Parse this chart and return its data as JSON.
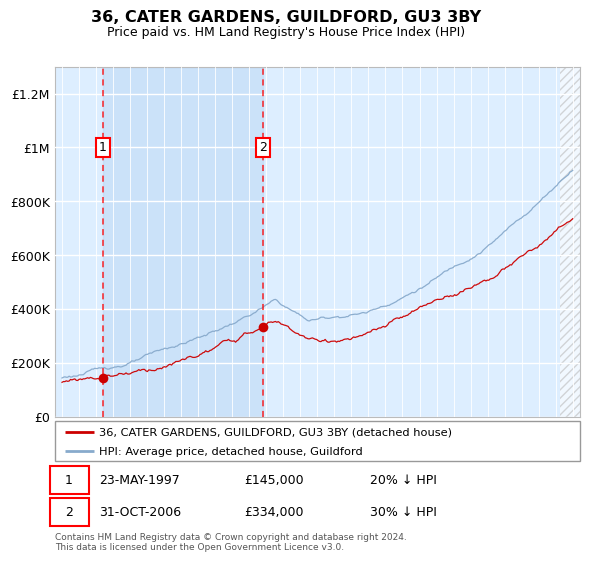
{
  "title": "36, CATER GARDENS, GUILDFORD, GU3 3BY",
  "subtitle": "Price paid vs. HM Land Registry's House Price Index (HPI)",
  "ylim": [
    0,
    1300000
  ],
  "yticks": [
    0,
    200000,
    400000,
    600000,
    800000,
    1000000,
    1200000
  ],
  "ytick_labels": [
    "£0",
    "£200K",
    "£400K",
    "£600K",
    "£800K",
    "£1M",
    "£1.2M"
  ],
  "xlim_start": 1994.58,
  "xlim_end": 2025.42,
  "purchase1_year": 1997.39,
  "purchase1_price": 145000,
  "purchase1_label": "1",
  "purchase2_year": 2006.83,
  "purchase2_price": 334000,
  "purchase2_label": "2",
  "legend1_label": "36, CATER GARDENS, GUILDFORD, GU3 3BY (detached house)",
  "legend2_label": "HPI: Average price, detached house, Guildford",
  "footer": "Contains HM Land Registry data © Crown copyright and database right 2024.\nThis data is licensed under the Open Government Licence v3.0.",
  "house_color": "#cc0000",
  "hpi_color": "#88aacc",
  "bg_color": "#ddeeff",
  "shade_color": "#cce0ff",
  "grid_color": "#ffffff"
}
